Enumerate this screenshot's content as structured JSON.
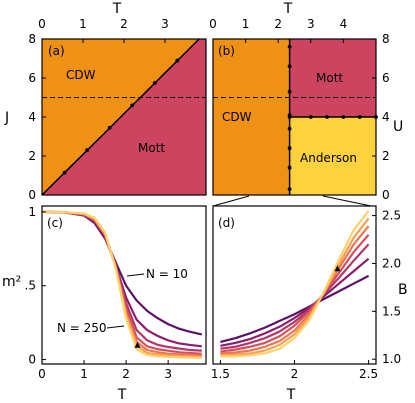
{
  "colors": {
    "orange": "#ef9114",
    "red": "#cd4461",
    "yellow": "#fdd23c",
    "line_dark": "#5a1367",
    "ramp": [
      "#5a1367",
      "#891f6c",
      "#b23668",
      "#d4505c",
      "#ec7550",
      "#f8a154",
      "#fdd268"
    ]
  },
  "chart_data": [
    {
      "panel": "a",
      "type": "area",
      "label": "(a)",
      "xlabel": "T",
      "ylabel": "J",
      "xlim": [
        0,
        4
      ],
      "ylim": [
        0,
        8
      ],
      "xticks": [
        "0",
        "1",
        "2",
        "3"
      ],
      "yticks": [
        "0",
        "2",
        "4",
        "6",
        "8"
      ],
      "regions": [
        {
          "label": "CDW",
          "color": "orange"
        },
        {
          "label": "Mott",
          "color": "red"
        }
      ],
      "boundary": {
        "x": [
          0,
          0.5,
          1,
          1.5,
          2,
          2.5,
          3,
          3.5,
          3.83
        ],
        "y": [
          0,
          1.04,
          2.08,
          3.12,
          4.17,
          5.21,
          6.26,
          7.3,
          8
        ]
      },
      "boundary_markers_x": [
        0.55,
        1.1,
        1.65,
        2.2,
        2.75,
        3.3
      ],
      "dashed_line_y": 5
    },
    {
      "panel": "b",
      "type": "area",
      "label": "(b)",
      "xlabel": "T",
      "ylabel": "U",
      "xlim": [
        0,
        5
      ],
      "ylim": [
        0,
        8
      ],
      "xticks": [
        "0",
        "1",
        "2",
        "3",
        "4"
      ],
      "yticks": [
        "0",
        "2",
        "4",
        "6",
        "8"
      ],
      "regions": [
        {
          "label": "CDW",
          "color": "orange"
        },
        {
          "label": "Mott",
          "color": "red"
        },
        {
          "label": "Anderson",
          "color": "yellow"
        }
      ],
      "vertical_boundary_T": 2.35,
      "vertical_markers_U": [
        0.3,
        1.4,
        2.4,
        3.4,
        4.1,
        5.3,
        6.6,
        7.6
      ],
      "horizontal_boundary_U": 4,
      "horizontal_markers_T": [
        2.35,
        3.0,
        3.5,
        4.0,
        4.5,
        5.0
      ],
      "dashed_line_y": 5
    },
    {
      "panel": "c",
      "type": "line",
      "label": "(c)",
      "xlabel": "T",
      "ylabel": "m²",
      "xlim": [
        0,
        3.9
      ],
      "ylim": [
        -0.03,
        1.04
      ],
      "xticks": [
        "0",
        "1",
        "2",
        "3"
      ],
      "yticks": [
        "0",
        ".5",
        "1"
      ],
      "annotations": [
        "N = 10",
        "N = 250"
      ],
      "series": [
        {
          "x": [
            0,
            0.5,
            1,
            1.25,
            1.5,
            1.75,
            2,
            2.25,
            2.5,
            2.75,
            3,
            3.25,
            3.5,
            3.8
          ],
          "y": [
            1.0,
            0.998,
            0.975,
            0.925,
            0.82,
            0.66,
            0.5,
            0.4,
            0.33,
            0.28,
            0.24,
            0.21,
            0.19,
            0.17
          ]
        },
        {
          "x": [
            0,
            0.5,
            1,
            1.25,
            1.5,
            1.75,
            2,
            2.25,
            2.5,
            2.75,
            3,
            3.25,
            3.5,
            3.8
          ],
          "y": [
            1.0,
            0.998,
            0.978,
            0.935,
            0.83,
            0.64,
            0.42,
            0.27,
            0.2,
            0.16,
            0.13,
            0.11,
            0.1,
            0.09
          ]
        },
        {
          "x": [
            0,
            0.5,
            1,
            1.25,
            1.5,
            1.75,
            2,
            2.25,
            2.5,
            2.75,
            3,
            3.25,
            3.5,
            3.8
          ],
          "y": [
            1.0,
            0.998,
            0.98,
            0.94,
            0.84,
            0.64,
            0.38,
            0.2,
            0.13,
            0.1,
            0.085,
            0.075,
            0.065,
            0.06
          ]
        },
        {
          "x": [
            0,
            0.5,
            1,
            1.25,
            1.5,
            1.75,
            2,
            2.25,
            2.5,
            2.75,
            3,
            3.25,
            3.5,
            3.8
          ],
          "y": [
            1.0,
            0.999,
            0.983,
            0.945,
            0.845,
            0.635,
            0.35,
            0.15,
            0.09,
            0.07,
            0.06,
            0.05,
            0.045,
            0.04
          ]
        },
        {
          "x": [
            0,
            0.5,
            1,
            1.25,
            1.5,
            1.75,
            2,
            2.25,
            2.5,
            2.75,
            3,
            3.25,
            3.5,
            3.8
          ],
          "y": [
            1.0,
            0.999,
            0.985,
            0.95,
            0.85,
            0.63,
            0.32,
            0.12,
            0.065,
            0.05,
            0.04,
            0.035,
            0.03,
            0.028
          ]
        },
        {
          "x": [
            0,
            0.5,
            1,
            1.25,
            1.5,
            1.75,
            2,
            2.25,
            2.5,
            2.75,
            3,
            3.25,
            3.5,
            3.8
          ],
          "y": [
            1.0,
            0.999,
            0.987,
            0.955,
            0.855,
            0.625,
            0.3,
            0.095,
            0.045,
            0.035,
            0.028,
            0.024,
            0.02,
            0.018
          ]
        },
        {
          "x": [
            0,
            0.5,
            1,
            1.25,
            1.5,
            1.75,
            2,
            2.25,
            2.5,
            2.75,
            3,
            3.25,
            3.5,
            3.8
          ],
          "y": [
            1.0,
            0.999,
            0.99,
            0.96,
            0.86,
            0.62,
            0.28,
            0.07,
            0.03,
            0.022,
            0.018,
            0.015,
            0.013,
            0.012
          ]
        }
      ],
      "marker": {
        "x": 2.27,
        "y": 0.1
      }
    },
    {
      "panel": "d",
      "type": "line",
      "label": "(d)",
      "xlabel": "T",
      "ylabel": "B",
      "xlim": [
        1.45,
        2.55
      ],
      "ylim": [
        0.95,
        2.6
      ],
      "xticks": [
        "1.5",
        "2",
        "2.5"
      ],
      "yticks": [
        "1.0",
        "1.5",
        "2.0",
        "2.5"
      ],
      "series": [
        {
          "x": [
            1.5,
            1.6,
            1.7,
            1.8,
            1.9,
            2.0,
            2.1,
            2.2,
            2.3,
            2.4,
            2.5
          ],
          "y": [
            1.18,
            1.22,
            1.27,
            1.33,
            1.4,
            1.47,
            1.55,
            1.63,
            1.71,
            1.79,
            1.87
          ]
        },
        {
          "x": [
            1.5,
            1.6,
            1.7,
            1.8,
            1.9,
            2.0,
            2.1,
            2.2,
            2.3,
            2.4,
            2.5
          ],
          "y": [
            1.14,
            1.17,
            1.21,
            1.27,
            1.34,
            1.43,
            1.54,
            1.66,
            1.79,
            1.92,
            2.05
          ]
        },
        {
          "x": [
            1.5,
            1.6,
            1.7,
            1.8,
            1.9,
            2.0,
            2.1,
            2.2,
            2.3,
            2.4,
            2.5
          ],
          "y": [
            1.11,
            1.13,
            1.17,
            1.22,
            1.29,
            1.39,
            1.52,
            1.68,
            1.85,
            2.03,
            2.2
          ]
        },
        {
          "x": [
            1.5,
            1.6,
            1.7,
            1.8,
            1.9,
            2.0,
            2.1,
            2.2,
            2.3,
            2.4,
            2.5
          ],
          "y": [
            1.08,
            1.1,
            1.13,
            1.17,
            1.24,
            1.35,
            1.5,
            1.69,
            1.9,
            2.12,
            2.3
          ]
        },
        {
          "x": [
            1.5,
            1.6,
            1.7,
            1.8,
            1.9,
            2.0,
            2.1,
            2.2,
            2.3,
            2.4,
            2.5
          ],
          "y": [
            1.06,
            1.07,
            1.09,
            1.13,
            1.19,
            1.3,
            1.47,
            1.7,
            1.95,
            2.2,
            2.39
          ]
        },
        {
          "x": [
            1.5,
            1.6,
            1.7,
            1.8,
            1.9,
            2.0,
            2.1,
            2.2,
            2.3,
            2.4,
            2.5
          ],
          "y": [
            1.04,
            1.05,
            1.06,
            1.09,
            1.15,
            1.26,
            1.44,
            1.7,
            1.99,
            2.27,
            2.47
          ]
        },
        {
          "x": [
            1.5,
            1.6,
            1.7,
            1.8,
            1.9,
            2.0,
            2.1,
            2.2,
            2.3,
            2.4,
            2.5
          ],
          "y": [
            1.03,
            1.03,
            1.04,
            1.06,
            1.11,
            1.22,
            1.41,
            1.71,
            2.04,
            2.35,
            2.55
          ]
        }
      ],
      "marker": {
        "x": 2.29,
        "y": 1.95
      }
    }
  ]
}
